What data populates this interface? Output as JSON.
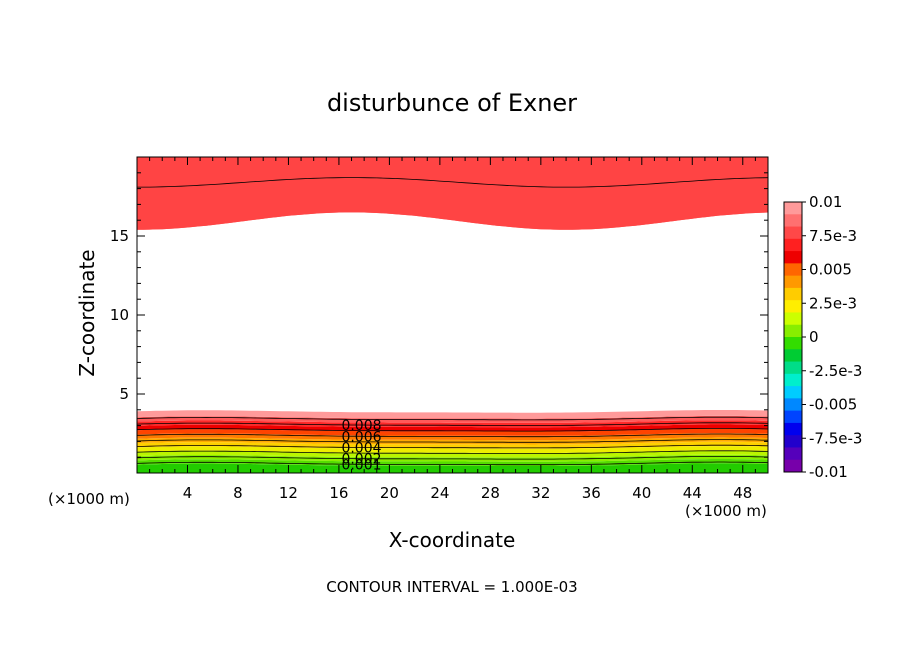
{
  "chart_data": {
    "type": "contour",
    "title": "disturbunce of Exner",
    "xlabel": "X-coordinate",
    "ylabel": "Z-coordinate",
    "x_unit": "(×1000 m)",
    "footer": "CONTOUR INTERVAL = 1.000E-03",
    "xlim": [
      0,
      50
    ],
    "ylim": [
      0,
      20
    ],
    "x_ticks": [
      4,
      8,
      12,
      16,
      20,
      24,
      28,
      32,
      36,
      40,
      44,
      48
    ],
    "y_ticks": [
      5,
      10,
      15
    ],
    "contour_interval": 0.001,
    "contour_labels": [
      "0.008",
      "0.006",
      "0.004",
      "0.002",
      "0.001"
    ],
    "colorbar": {
      "labels": [
        "0.01",
        "7.5e-3",
        "0.005",
        "2.5e-3",
        "0",
        "-2.5e-3",
        "-0.005",
        "-7.5e-3",
        "-0.01"
      ],
      "min": -0.01,
      "max": 0.01,
      "colors": [
        "#ff9a9a",
        "#ff7070",
        "#ff4848",
        "#ff2020",
        "#ee0000",
        "#ff6600",
        "#ff9900",
        "#ffcc00",
        "#ffee00",
        "#ccff00",
        "#88ee00",
        "#33dd00",
        "#00cc33",
        "#00dd88",
        "#00eecc",
        "#00ccff",
        "#0088ff",
        "#0044ff",
        "#0000ee",
        "#2200cc",
        "#5500bb",
        "#7700aa"
      ]
    },
    "field_description": "positive values near the lower boundary (0 to ~4 km) and near the top (~15 to 20 km), near zero in between; wavy along x"
  }
}
